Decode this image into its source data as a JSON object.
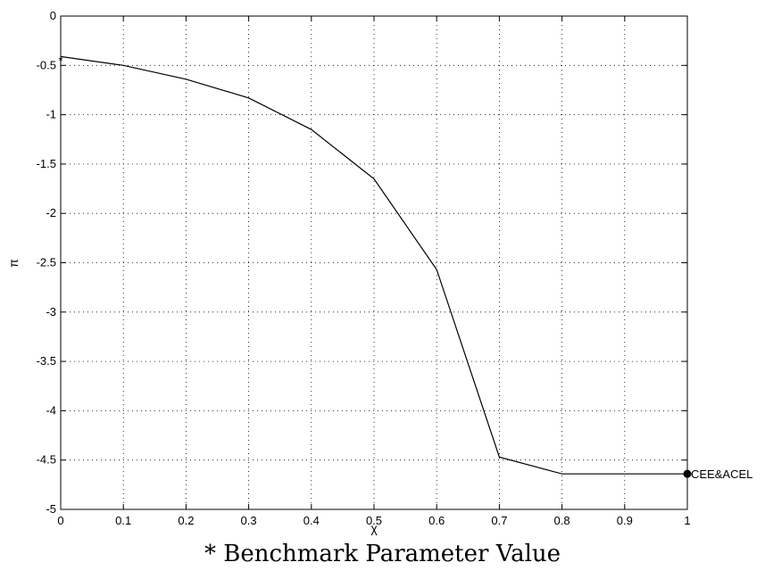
{
  "chart_data": {
    "type": "line",
    "xlabel": "χ",
    "ylabel": "π",
    "xlim": [
      0,
      1
    ],
    "ylim": [
      -5,
      0
    ],
    "grid": true,
    "x_ticks": [
      "0",
      "0.1",
      "0.2",
      "0.3",
      "0.4",
      "0.5",
      "0.6",
      "0.7",
      "0.8",
      "0.9",
      "1"
    ],
    "y_ticks": [
      "0",
      "-0.5",
      "-1",
      "-1.5",
      "-2",
      "-2.5",
      "-3",
      "-3.5",
      "-4",
      "-4.5",
      "-5"
    ],
    "series": [
      {
        "x": [
          0,
          0.1,
          0.2,
          0.3,
          0.4,
          0.5,
          0.6,
          0.7,
          0.8,
          0.9,
          1.0
        ],
        "y": [
          -0.41,
          -0.5,
          -0.64,
          -0.83,
          -1.15,
          -1.65,
          -2.57,
          -4.47,
          -4.64,
          -4.64,
          -4.64
        ],
        "color": "#000000"
      }
    ],
    "markers": [
      {
        "x": 0,
        "y": -0.41,
        "symbol": "*",
        "label": ""
      },
      {
        "x": 1,
        "y": -4.64,
        "symbol": "filled-circle",
        "label": "CEE&ACEL"
      }
    ]
  },
  "caption": "* Benchmark Parameter Value"
}
